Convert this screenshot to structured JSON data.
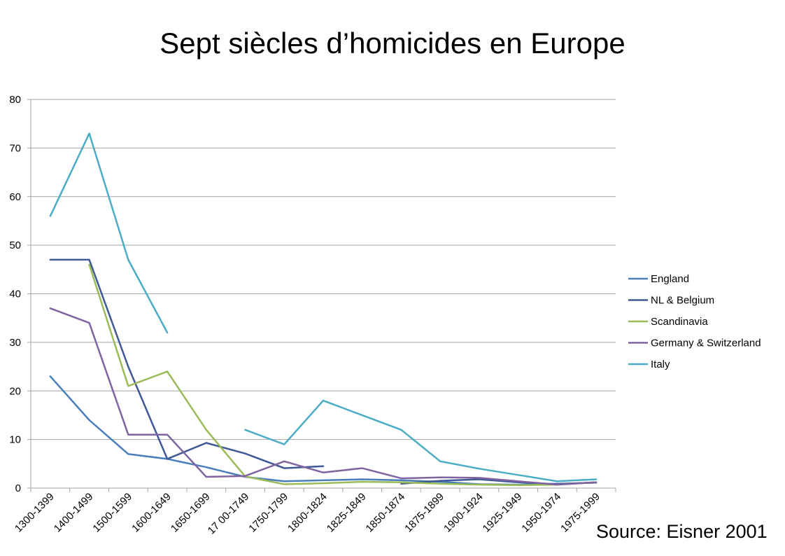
{
  "colors": {
    "England": "#4a7ebb",
    "NL & Belgium": "#3f5896",
    "Scandinavia": "#9bbb59",
    "Germany & Switzerland": "#8064a2",
    "Italy": "#4bacc6",
    "grid": "#a6a6a6"
  },
  "source": "Source: Eisner 2001",
  "chart_data": {
    "type": "line",
    "title": "Sept siècles d’homicides en Europe",
    "xlabel": "",
    "ylabel": "",
    "ylim": [
      0,
      80
    ],
    "yticks": [
      0,
      10,
      20,
      30,
      40,
      50,
      60,
      70,
      80
    ],
    "grid": true,
    "legend": "right",
    "categories": [
      "1300-1399",
      "1400-1499",
      "1500-1599",
      "1600-1649",
      "1650-1699",
      "17 00-1749",
      "1750-1799",
      "1800-1824",
      "1825-1849",
      "1850-1874",
      "1875-1899",
      "1900-1924",
      "1925-1949",
      "1950-1974",
      "1975-1999"
    ],
    "series": [
      {
        "name": "England",
        "values": [
          23,
          14,
          7,
          6,
          4.3,
          2.3,
          1.4,
          1.6,
          1.8,
          1.6,
          1.3,
          0.8,
          0.7,
          0.9,
          1.1
        ]
      },
      {
        "name": "NL & Belgium",
        "values": [
          47,
          47,
          25,
          6,
          9.3,
          7.1,
          4.1,
          4.5,
          null,
          0.9,
          1.5,
          1.8,
          1.2,
          0.8,
          1.2
        ]
      },
      {
        "name": "Scandinavia",
        "values": [
          null,
          46,
          21,
          24,
          12,
          2.4,
          0.8,
          1.0,
          1.3,
          1.2,
          0.9,
          0.7,
          0.6,
          0.7,
          1.2
        ]
      },
      {
        "name": "Germany & Switzerland",
        "values": [
          37,
          34,
          11,
          11,
          2.3,
          2.5,
          5.5,
          3.2,
          4.1,
          2.0,
          2.2,
          2.1,
          1.4,
          0.7,
          1.2
        ]
      },
      {
        "name": "Italy",
        "values": [
          56,
          73,
          47,
          32,
          null,
          12,
          9,
          18,
          15,
          12,
          5.5,
          4.0,
          2.7,
          1.4,
          1.8
        ]
      }
    ]
  }
}
